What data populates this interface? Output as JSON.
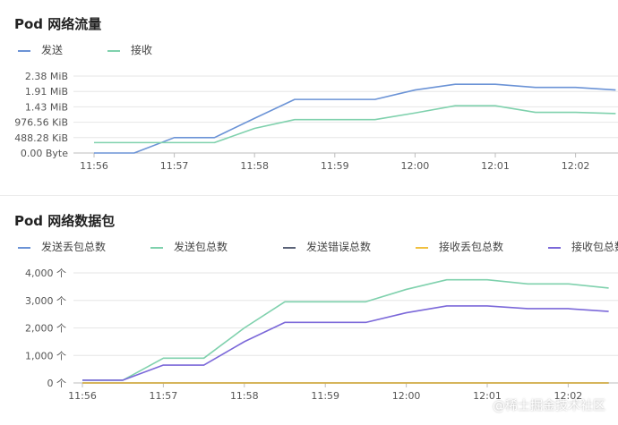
{
  "chart_data": [
    {
      "type": "line",
      "title": "Pod 网络流量",
      "x": [
        "11:56",
        "11:56:30",
        "11:57",
        "11:57:30",
        "11:58",
        "11:58:30",
        "11:59",
        "11:59:30",
        "12:00",
        "12:00:30",
        "12:01",
        "12:01:30",
        "12:02",
        "12:02:30"
      ],
      "xtick_labels": [
        "11:56",
        "11:57",
        "11:58",
        "11:59",
        "12:00",
        "12:01",
        "12:02"
      ],
      "ytick_labels": [
        "0.00 Byte",
        "488.28 KiB",
        "976.56 KiB",
        "1.43 MiB",
        "1.91 MiB",
        "2.38 MiB"
      ],
      "ylim_kib": [
        0,
        2441.41
      ],
      "legend_position": "top-left",
      "series": [
        {
          "name": "发送",
          "color": "#6b93d6",
          "values_kib": [
            0,
            0,
            488,
            488,
            1100,
            1700,
            1700,
            1700,
            2000,
            2180,
            2180,
            2080,
            2080,
            2000
          ]
        },
        {
          "name": "接收",
          "color": "#7fd1ad",
          "values_kib": [
            330,
            330,
            330,
            330,
            780,
            1060,
            1060,
            1060,
            1270,
            1500,
            1500,
            1290,
            1290,
            1250
          ]
        }
      ]
    },
    {
      "type": "line",
      "title": "Pod 网络数据包",
      "x": [
        "11:56",
        "11:56:30",
        "11:57",
        "11:57:30",
        "11:58",
        "11:58:30",
        "11:59",
        "11:59:30",
        "12:00",
        "12:00:30",
        "12:01",
        "12:01:30",
        "12:02",
        "12:02:30"
      ],
      "xtick_labels": [
        "11:56",
        "11:57",
        "11:58",
        "11:59",
        "12:00",
        "12:01",
        "12:02"
      ],
      "ytick_labels": [
        "0 个",
        "1,000 个",
        "2,000 个",
        "3,000 个",
        "4,000 个"
      ],
      "ylim": [
        0,
        4000
      ],
      "legend_position": "top-left",
      "series": [
        {
          "name": "发送丢包总数",
          "color": "#6b93d6",
          "values": [
            0,
            0,
            0,
            0,
            0,
            0,
            0,
            0,
            0,
            0,
            0,
            0,
            0,
            0
          ]
        },
        {
          "name": "发送包总数",
          "color": "#7fd1ad",
          "values": [
            100,
            100,
            900,
            900,
            2000,
            2950,
            2950,
            2950,
            3400,
            3750,
            3750,
            3600,
            3600,
            3450
          ]
        },
        {
          "name": "发送错误总数",
          "color": "#5b6378",
          "values": [
            0,
            0,
            0,
            0,
            0,
            0,
            0,
            0,
            0,
            0,
            0,
            0,
            0,
            0
          ]
        },
        {
          "name": "接收丢包总数",
          "color": "#f0c040",
          "values": [
            0,
            0,
            0,
            0,
            0,
            0,
            0,
            0,
            0,
            0,
            0,
            0,
            0,
            0
          ]
        },
        {
          "name": "接收包总数",
          "color": "#7b68d9",
          "values": [
            100,
            100,
            650,
            650,
            1500,
            2200,
            2200,
            2200,
            2550,
            2800,
            2800,
            2700,
            2700,
            2600
          ]
        }
      ]
    }
  ],
  "watermark": "@稀土掘金技术社区"
}
